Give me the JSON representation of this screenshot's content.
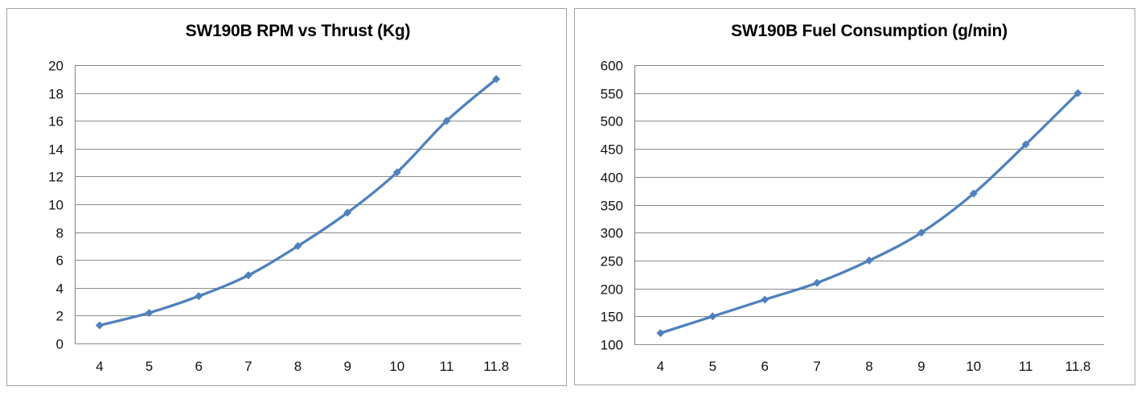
{
  "page": {
    "background": "#ffffff"
  },
  "colors": {
    "series_line": "#4F81BD",
    "marker_fill": "#4F81BD",
    "gridline": "#8a8a8a",
    "axis_line": "#7f7f7f",
    "panel_border": "#a3a3a3",
    "title_text": "#000000",
    "label_text": "#111111"
  },
  "chart_data": [
    {
      "type": "line",
      "title": "SW190B RPM vs Thrust (Kg)",
      "xlabel": "",
      "ylabel": "",
      "categories": [
        "4",
        "5",
        "6",
        "7",
        "8",
        "9",
        "10",
        "11",
        "11.8"
      ],
      "values": [
        1.3,
        2.2,
        3.4,
        4.9,
        7.0,
        9.4,
        12.3,
        16.0,
        19.0
      ],
      "ylim": [
        0,
        20
      ],
      "yticks": [
        0,
        2,
        4,
        6,
        8,
        10,
        12,
        14,
        16,
        18,
        20
      ],
      "grid": "horizontal",
      "legend": "none",
      "marker": "diamond",
      "smooth": true
    },
    {
      "type": "line",
      "title": "SW190B Fuel Consumption (g/min)",
      "xlabel": "",
      "ylabel": "",
      "categories": [
        "4",
        "5",
        "6",
        "7",
        "8",
        "9",
        "10",
        "11",
        "11.8"
      ],
      "values": [
        120,
        150,
        180,
        210,
        250,
        300,
        370,
        458,
        550
      ],
      "ylim": [
        100,
        600
      ],
      "yticks": [
        100,
        150,
        200,
        250,
        300,
        350,
        400,
        450,
        500,
        550,
        600
      ],
      "grid": "horizontal",
      "legend": "none",
      "marker": "diamond",
      "smooth": true
    }
  ]
}
